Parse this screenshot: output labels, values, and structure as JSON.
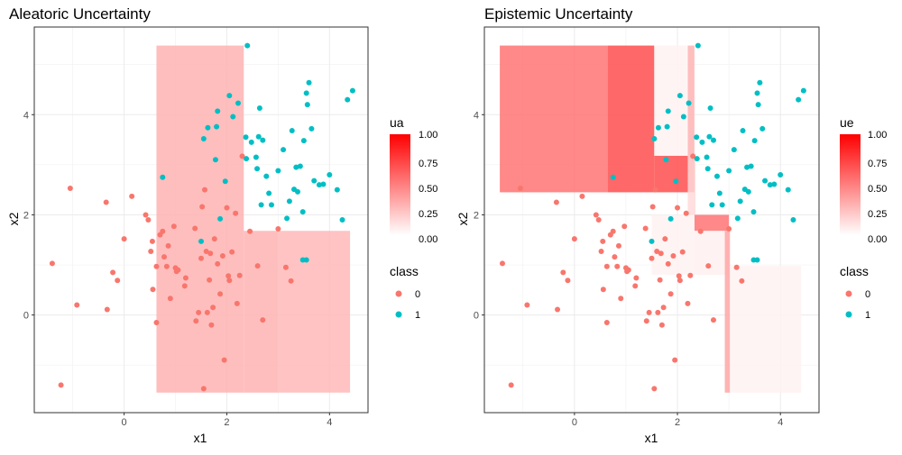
{
  "chart_data": [
    {
      "type": "scatter",
      "title": "Aleatoric Uncertainty",
      "xlabel": "x1",
      "ylabel": "x2",
      "xlim": [
        -1.75,
        4.75
      ],
      "ylim": [
        -1.95,
        5.75
      ],
      "x_ticks": [
        0,
        2,
        4
      ],
      "y_ticks": [
        0,
        2,
        4
      ],
      "grid": true,
      "fill_legend": {
        "title": "ua",
        "range": [
          0,
          1
        ],
        "ticks": [
          "1.00",
          "0.75",
          "0.50",
          "0.25",
          "0.00"
        ],
        "low_color": "#ffffff",
        "high_color": "#ff0000"
      },
      "regions": [
        {
          "x0": 0.63,
          "x1": 2.33,
          "y0": -1.55,
          "y1": 5.38,
          "value": 0.3
        },
        {
          "x0": 2.33,
          "x1": 3.0,
          "y0": -1.55,
          "y1": 1.68,
          "value": 0.3
        },
        {
          "x0": 3.0,
          "x1": 4.4,
          "y0": -1.55,
          "y1": 1.68,
          "value": 0.28
        }
      ]
    },
    {
      "type": "scatter",
      "title": "Epistemic Uncertainty",
      "xlabel": "x1",
      "ylabel": "x2",
      "xlim": [
        -1.75,
        4.75
      ],
      "ylim": [
        -1.95,
        5.75
      ],
      "x_ticks": [
        0,
        2,
        4
      ],
      "y_ticks": [
        0,
        2,
        4
      ],
      "grid": true,
      "fill_legend": {
        "title": "ue",
        "range": [
          0,
          1
        ],
        "ticks": [
          "1.00",
          "0.75",
          "0.50",
          "0.25",
          "0.00"
        ],
        "low_color": "#ffffff",
        "high_color": "#ff0000"
      },
      "regions": [
        {
          "x0": -1.45,
          "x1": 0.65,
          "y0": 2.45,
          "y1": 5.38,
          "value": 0.55
        },
        {
          "x0": 0.65,
          "x1": 1.55,
          "y0": 2.45,
          "y1": 5.38,
          "value": 0.7
        },
        {
          "x0": 1.55,
          "x1": 2.33,
          "y0": 2.45,
          "y1": 3.18,
          "value": 0.7
        },
        {
          "x0": 2.2,
          "x1": 2.33,
          "y0": 3.18,
          "y1": 5.38,
          "value": 0.3
        },
        {
          "x0": 1.55,
          "x1": 2.2,
          "y0": 3.18,
          "y1": 5.38,
          "value": 0.05
        },
        {
          "x0": 2.33,
          "x1": 3.0,
          "y0": 1.68,
          "y1": 2.0,
          "value": 0.55
        },
        {
          "x0": 2.2,
          "x1": 2.35,
          "y0": 2.0,
          "y1": 3.18,
          "value": 0.15
        },
        {
          "x0": 1.5,
          "x1": 2.33,
          "y0": 0.8,
          "y1": 2.0,
          "value": 0.05
        },
        {
          "x0": 2.33,
          "x1": 3.0,
          "y0": 0.8,
          "y1": 1.68,
          "value": 0.06
        },
        {
          "x0": 2.92,
          "x1": 3.02,
          "y0": -1.55,
          "y1": 1.68,
          "value": 0.35
        },
        {
          "x0": 3.02,
          "x1": 4.4,
          "y0": -1.55,
          "y1": 0.98,
          "value": 0.05
        }
      ]
    }
  ],
  "class_legend": {
    "title": "class",
    "entries": [
      {
        "label": "0",
        "color": "#F8766D"
      },
      {
        "label": "1",
        "color": "#00BFC4"
      }
    ]
  },
  "points": {
    "class0": [
      [
        -1.4,
        1.03
      ],
      [
        -1.23,
        -1.4
      ],
      [
        -1.05,
        2.53
      ],
      [
        -0.92,
        0.2
      ],
      [
        -0.35,
        2.25
      ],
      [
        -0.33,
        0.11
      ],
      [
        -0.22,
        0.85
      ],
      [
        -0.13,
        0.69
      ],
      [
        0.0,
        1.52
      ],
      [
        0.15,
        2.37
      ],
      [
        0.42,
        2.0
      ],
      [
        0.47,
        1.9
      ],
      [
        0.52,
        1.27
      ],
      [
        0.55,
        1.47
      ],
      [
        0.56,
        0.51
      ],
      [
        0.63,
        0.97
      ],
      [
        0.63,
        -0.15
      ],
      [
        0.7,
        1.6
      ],
      [
        0.75,
        1.67
      ],
      [
        0.78,
        1.16
      ],
      [
        0.83,
        0.97
      ],
      [
        0.86,
        1.38
      ],
      [
        0.9,
        0.33
      ],
      [
        0.97,
        1.77
      ],
      [
        1.0,
        0.94
      ],
      [
        1.02,
        0.87
      ],
      [
        1.05,
        0.9
      ],
      [
        1.18,
        0.58
      ],
      [
        1.2,
        0.74
      ],
      [
        1.38,
        1.73
      ],
      [
        1.4,
        -0.12
      ],
      [
        1.45,
        0.05
      ],
      [
        1.5,
        1.13
      ],
      [
        1.52,
        2.16
      ],
      [
        1.55,
        -1.47
      ],
      [
        1.57,
        2.5
      ],
      [
        1.6,
        1.27
      ],
      [
        1.62,
        0.05
      ],
      [
        1.66,
        0.7
      ],
      [
        1.68,
        1.23
      ],
      [
        1.7,
        -0.2
      ],
      [
        1.73,
        0.15
      ],
      [
        1.76,
        1.52
      ],
      [
        1.82,
        1.02
      ],
      [
        1.87,
        0.42
      ],
      [
        1.92,
        1.18
      ],
      [
        1.95,
        -0.9
      ],
      [
        2.0,
        2.14
      ],
      [
        2.03,
        0.78
      ],
      [
        2.05,
        0.69
      ],
      [
        2.1,
        1.26
      ],
      [
        2.17,
        2.03
      ],
      [
        2.2,
        0.23
      ],
      [
        2.25,
        0.79
      ],
      [
        2.3,
        3.17
      ],
      [
        2.45,
        1.67
      ],
      [
        2.6,
        0.98
      ],
      [
        2.7,
        -0.1
      ],
      [
        3.0,
        1.72
      ],
      [
        3.15,
        0.95
      ],
      [
        3.25,
        0.68
      ]
    ],
    "class1": [
      [
        0.75,
        2.75
      ],
      [
        1.5,
        1.47
      ],
      [
        1.55,
        3.52
      ],
      [
        1.63,
        3.74
      ],
      [
        1.78,
        3.1
      ],
      [
        1.8,
        3.76
      ],
      [
        1.82,
        4.07
      ],
      [
        1.87,
        1.92
      ],
      [
        1.97,
        2.67
      ],
      [
        2.05,
        4.38
      ],
      [
        2.12,
        3.96
      ],
      [
        2.22,
        4.23
      ],
      [
        2.37,
        3.55
      ],
      [
        2.38,
        3.12
      ],
      [
        2.4,
        5.38
      ],
      [
        2.48,
        3.45
      ],
      [
        2.57,
        3.15
      ],
      [
        2.59,
        2.92
      ],
      [
        2.62,
        3.56
      ],
      [
        2.64,
        4.13
      ],
      [
        2.67,
        2.2
      ],
      [
        2.7,
        3.49
      ],
      [
        2.77,
        2.77
      ],
      [
        2.82,
        2.43
      ],
      [
        2.87,
        2.2
      ],
      [
        3.0,
        2.88
      ],
      [
        3.1,
        3.3
      ],
      [
        3.17,
        1.93
      ],
      [
        3.22,
        2.27
      ],
      [
        3.27,
        3.68
      ],
      [
        3.31,
        2.51
      ],
      [
        3.35,
        2.95
      ],
      [
        3.38,
        2.46
      ],
      [
        3.43,
        2.97
      ],
      [
        3.48,
        2.06
      ],
      [
        3.5,
        3.48
      ],
      [
        3.55,
        4.43
      ],
      [
        3.57,
        4.2
      ],
      [
        3.6,
        4.64
      ],
      [
        3.65,
        3.72
      ],
      [
        3.7,
        2.68
      ],
      [
        3.8,
        2.6
      ],
      [
        3.88,
        2.61
      ],
      [
        4.0,
        2.8
      ],
      [
        4.15,
        2.5
      ],
      [
        4.25,
        1.9
      ],
      [
        4.35,
        4.3
      ],
      [
        4.45,
        4.48
      ],
      [
        3.48,
        1.1
      ],
      [
        3.55,
        1.1
      ]
    ]
  }
}
